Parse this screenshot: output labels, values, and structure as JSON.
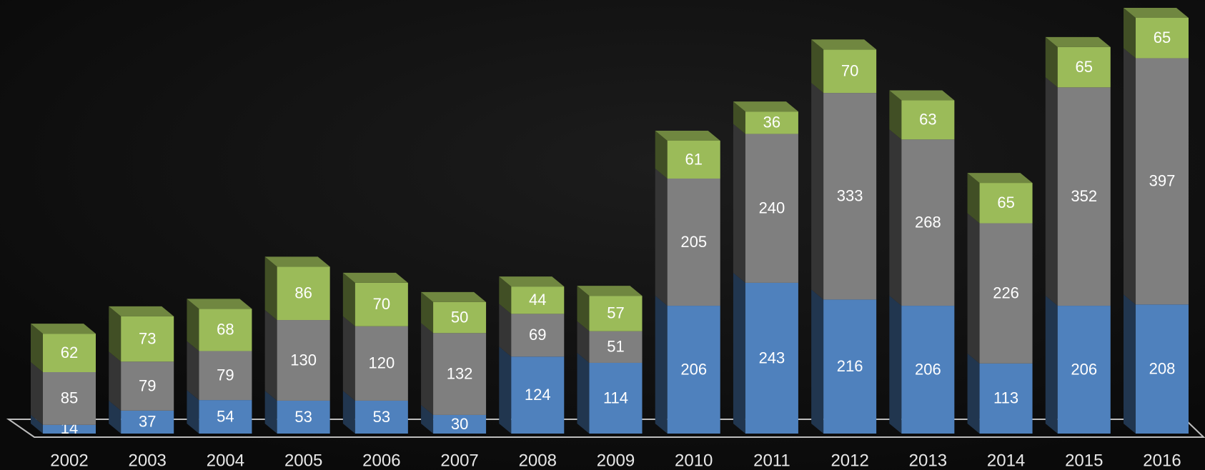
{
  "chart_data": {
    "type": "bar3d_stacked",
    "categories": [
      "2002",
      "2003",
      "2004",
      "2005",
      "2006",
      "2007",
      "2008",
      "2009",
      "2010",
      "2011",
      "2012",
      "2013",
      "2014",
      "2015",
      "2016"
    ],
    "series": [
      {
        "color": "#4f81bd",
        "values": [
          14,
          37,
          54,
          53,
          53,
          30,
          124,
          114,
          206,
          243,
          216,
          206,
          113,
          206,
          208
        ]
      },
      {
        "color": "#7f7f7f",
        "values": [
          85,
          79,
          79,
          130,
          120,
          132,
          69,
          51,
          205,
          240,
          333,
          268,
          226,
          352,
          397
        ]
      },
      {
        "color": "#9bbb59",
        "values": [
          62,
          73,
          68,
          86,
          70,
          50,
          44,
          57,
          61,
          36,
          70,
          63,
          65,
          65,
          65
        ]
      }
    ]
  }
}
